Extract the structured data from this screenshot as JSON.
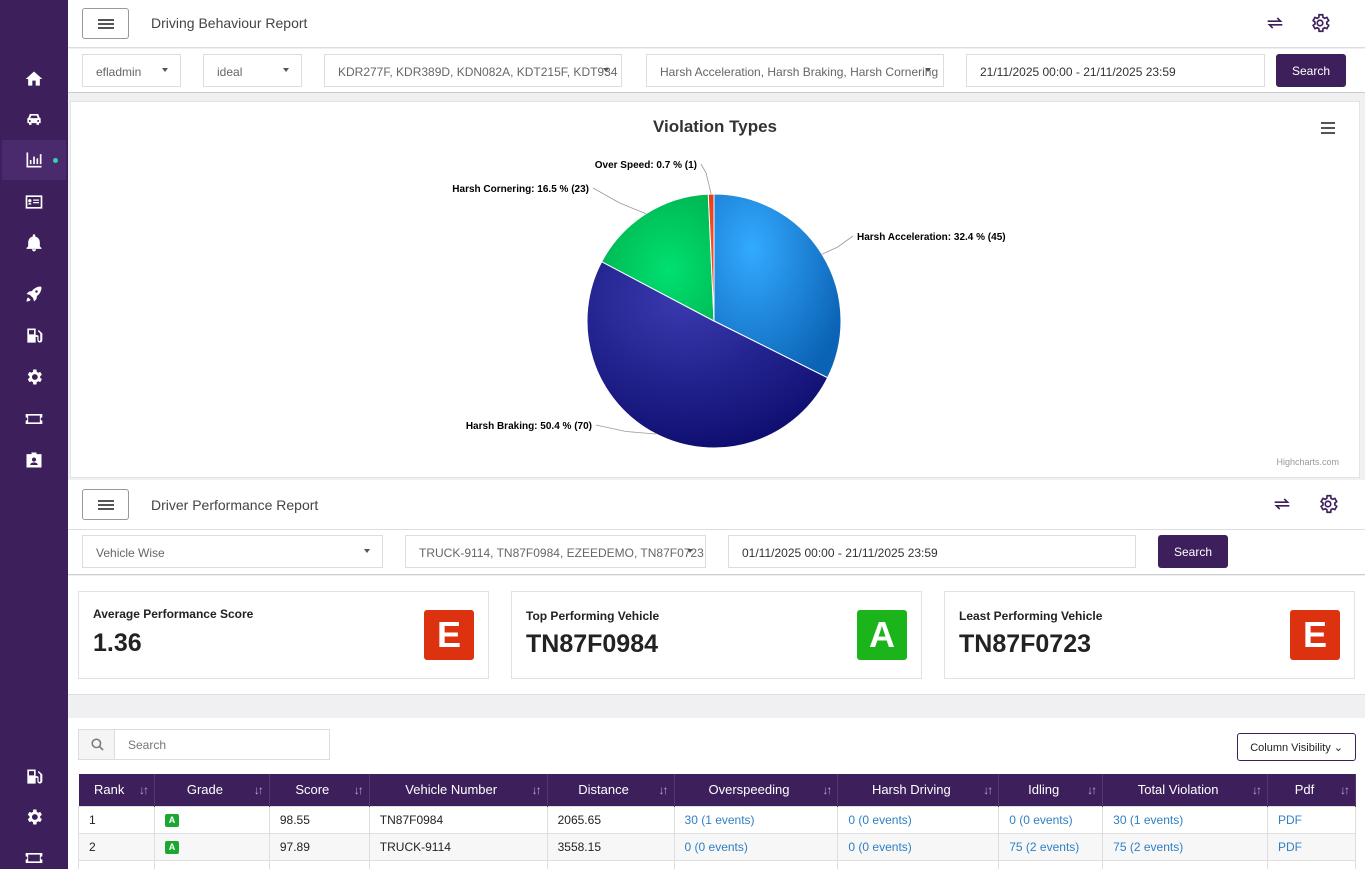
{
  "colors": {
    "sidebar": "#3d1f5c",
    "accent": "#3d1f5c",
    "grade_e": "#dd3210",
    "grade_a": "#1bb41b",
    "link": "#2f7fc4"
  },
  "sidebar": {
    "icons": [
      "home-icon",
      "car-icon",
      "chart-bar-icon",
      "id-card-icon",
      "bell-icon",
      "rocket-icon",
      "fuel-icon",
      "gear-icon",
      "ticket-icon",
      "badge-icon",
      "fuel-icon",
      "gear-icon",
      "ticket-icon"
    ]
  },
  "behaviour_report": {
    "title": "Driving Behaviour Report",
    "filters": {
      "user": "efladmin",
      "group": "ideal",
      "vehicles": "KDR277F, KDR389D, KDN082A, KDT215F, KDT934",
      "violations": "Harsh Acceleration, Harsh Braking, Harsh Cornering",
      "date_range": "21/11/2025 00:00 - 21/11/2025 23:59",
      "search_label": "Search"
    }
  },
  "chart_data": {
    "type": "pie",
    "title": "Violation Types",
    "slices": [
      {
        "name": "Harsh Acceleration",
        "percent": 32.4,
        "count": 45,
        "label": "Harsh Acceleration: 32.4 % (45)",
        "color": "#1e88e5"
      },
      {
        "name": "Harsh Braking",
        "percent": 50.4,
        "count": 70,
        "label": "Harsh Braking: 50.4 % (70)",
        "color": "#1a237e"
      },
      {
        "name": "Harsh Cornering",
        "percent": 16.5,
        "count": 23,
        "label": "Harsh Cornering: 16.5 % (23)",
        "color": "#00c853"
      },
      {
        "name": "Over Speed",
        "percent": 0.7,
        "count": 1,
        "label": "Over Speed: 0.7 % (1)",
        "color": "#e53935"
      }
    ],
    "credits": "Highcharts.com"
  },
  "performance_report": {
    "title": "Driver Performance Report",
    "filters": {
      "mode": "Vehicle Wise",
      "vehicles": "TRUCK-9114, TN87F0984, EZEEDEMO, TN87F0723",
      "date_range": "01/11/2025 00:00 - 21/11/2025 23:59",
      "search_label": "Search"
    },
    "cards": [
      {
        "label": "Average Performance Score",
        "value": "1.36",
        "grade": "E"
      },
      {
        "label": "Top Performing Vehicle",
        "value": "TN87F0984",
        "grade": "A"
      },
      {
        "label": "Least Performing Vehicle",
        "value": "TN87F0723",
        "grade": "E"
      }
    ]
  },
  "table": {
    "search_placeholder": "Search",
    "column_visibility": "Column Visibility",
    "headers": [
      "Rank",
      "Grade",
      "Score",
      "Vehicle Number",
      "Distance",
      "Overspeeding",
      "Harsh Driving",
      "Idling",
      "Total Violation",
      "Pdf"
    ],
    "rows": [
      {
        "rank": "1",
        "grade": "A",
        "score": "98.55",
        "vehicle": "TN87F0984",
        "distance": "2065.65",
        "overspeeding": "30 (1 events)",
        "harsh": "0 (0 events)",
        "idling": "0 (0 events)",
        "total": "30 (1 events)",
        "pdf": "PDF"
      },
      {
        "rank": "2",
        "grade": "A",
        "score": "97.89",
        "vehicle": "TRUCK-9114",
        "distance": "3558.15",
        "overspeeding": "0 (0 events)",
        "harsh": "0 (0 events)",
        "idling": "75 (2 events)",
        "total": "75 (2 events)",
        "pdf": "PDF"
      }
    ]
  }
}
